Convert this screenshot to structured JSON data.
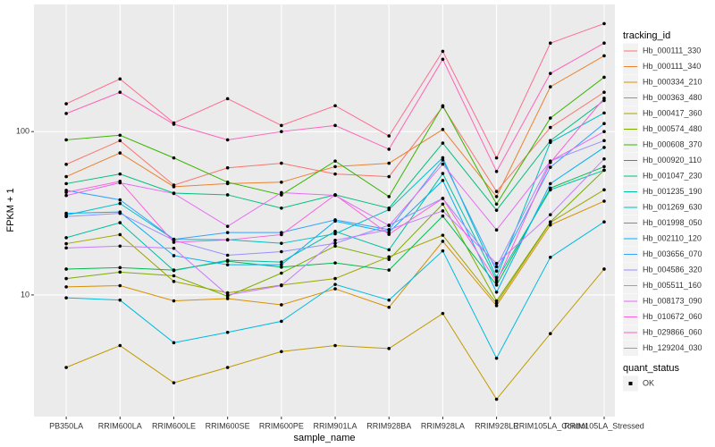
{
  "chart_data": {
    "type": "line",
    "x_label": "sample_name",
    "y_label": "FPKM + 1",
    "log_y": true,
    "grid": true,
    "point_color": "#000000",
    "legend_title": "tracking_id",
    "legend2_title": "quant_status",
    "legend2_items": [
      "OK"
    ],
    "categories": [
      "PB350LA",
      "RRIM600LA",
      "RRIM600LE",
      "RRIM600SE",
      "RRIM600PE",
      "RRIM901LA",
      "RRIM928BA",
      "RRIM928LA",
      "RRIM928LE",
      "RRIM105LA_Control",
      "RRIM105LA_Stressed"
    ],
    "ylim": [
      1.8,
      600
    ],
    "yticks": [
      10,
      100
    ],
    "series": [
      {
        "name": "Hb_000111_330",
        "color": "#F8766D",
        "values": [
          63,
          88,
          47,
          60,
          64,
          55,
          53,
          142,
          43,
          106,
          174
        ]
      },
      {
        "name": "Hb_000111_340",
        "color": "#EA8331",
        "values": [
          53,
          74,
          46,
          48,
          49,
          61,
          64,
          103,
          40,
          188,
          291
        ]
      },
      {
        "name": "Hb_000334_210",
        "color": "#D89000",
        "values": [
          11.2,
          11.4,
          9.2,
          9.5,
          8.7,
          10.9,
          8.4,
          21.3,
          8.6,
          26.8,
          37.5
        ]
      },
      {
        "name": "Hb_000363_480",
        "color": "#C09B00",
        "values": [
          3.6,
          4.9,
          2.9,
          3.6,
          4.5,
          4.9,
          4.7,
          7.7,
          2.3,
          5.8,
          14.4
        ]
      },
      {
        "name": "Hb_000417_360",
        "color": "#A3A500",
        "values": [
          20.6,
          23.4,
          12.1,
          10.3,
          11.5,
          12.6,
          17.1,
          23.2,
          8.9,
          27.8,
          44
        ]
      },
      {
        "name": "Hb_000574_480",
        "color": "#7CAE00",
        "values": [
          12.6,
          13.8,
          13.1,
          9.8,
          13.6,
          19.9,
          16.5,
          36,
          9.2,
          28,
          58
        ]
      },
      {
        "name": "Hb_000608_370",
        "color": "#39B600",
        "values": [
          89,
          95,
          69,
          49,
          41,
          66,
          40,
          144,
          36,
          121,
          215
        ]
      },
      {
        "name": "Hb_000920_110",
        "color": "#00BB4E",
        "values": [
          14.4,
          14.7,
          14.2,
          16.1,
          14.8,
          15.7,
          14.2,
          30.4,
          11.5,
          45.1,
          61
        ]
      },
      {
        "name": "Hb_001047_230",
        "color": "#00BF7D",
        "values": [
          48,
          55,
          42,
          41,
          34,
          41,
          34,
          85,
          33,
          88,
          155
        ]
      },
      {
        "name": "Hb_001235_190",
        "color": "#00C1A3",
        "values": [
          22.4,
          27.7,
          14.1,
          16.3,
          15.9,
          24.5,
          18.9,
          55.4,
          12.3,
          44,
          58
        ]
      },
      {
        "name": "Hb_001269_630",
        "color": "#00BFC4",
        "values": [
          30.8,
          36.3,
          21.9,
          21.8,
          20.7,
          23.7,
          33.3,
          69.2,
          12.8,
          85.9,
          130
        ]
      },
      {
        "name": "Hb_001998_050",
        "color": "#00BAE0",
        "values": [
          9.6,
          9.3,
          5.1,
          5.9,
          6.9,
          11.6,
          9.3,
          18.6,
          4.1,
          17,
          28
        ]
      },
      {
        "name": "Hb_002110_120",
        "color": "#00B0F6",
        "values": [
          31.6,
          32.2,
          17.4,
          15.3,
          15.3,
          28.3,
          24.2,
          50.2,
          10.4,
          48,
          80
        ]
      },
      {
        "name": "Hb_003656_070",
        "color": "#35A2FF",
        "values": [
          43.7,
          38.2,
          21.9,
          24.1,
          24.1,
          28.8,
          25.1,
          67,
          14,
          60.5,
          112
        ]
      },
      {
        "name": "Hb_004586_320",
        "color": "#9590FF",
        "values": [
          30.2,
          31.6,
          21.6,
          17.5,
          18.4,
          20.7,
          26.7,
          39,
          14.9,
          66,
          88
        ]
      },
      {
        "name": "Hb_005511_160",
        "color": "#C77CFF",
        "values": [
          19.4,
          19.9,
          19.3,
          10,
          11.4,
          21.6,
          25.1,
          32.7,
          15.6,
          31,
          68
        ]
      },
      {
        "name": "Hb_008173_090",
        "color": "#E76BF3",
        "values": [
          40.6,
          48.6,
          41.8,
          26.3,
          42.3,
          40.7,
          26.6,
          63.2,
          25,
          65.8,
          100
        ]
      },
      {
        "name": "Hb_010672_060",
        "color": "#FA62DB",
        "values": [
          42.5,
          49.6,
          21,
          21.7,
          23.4,
          41,
          23.5,
          39,
          12,
          64.7,
          160
        ]
      },
      {
        "name": "Hb_029866_060",
        "color": "#FF62BC",
        "values": [
          129,
          174,
          111,
          89,
          100,
          109,
          78,
          277,
          57,
          227,
          348
        ]
      },
      {
        "name": "Hb_129204_030",
        "color": "#FF6C90",
        "values": [
          148,
          210,
          113,
          159,
          109,
          144,
          94,
          310,
          69,
          348,
          458
        ]
      }
    ]
  }
}
